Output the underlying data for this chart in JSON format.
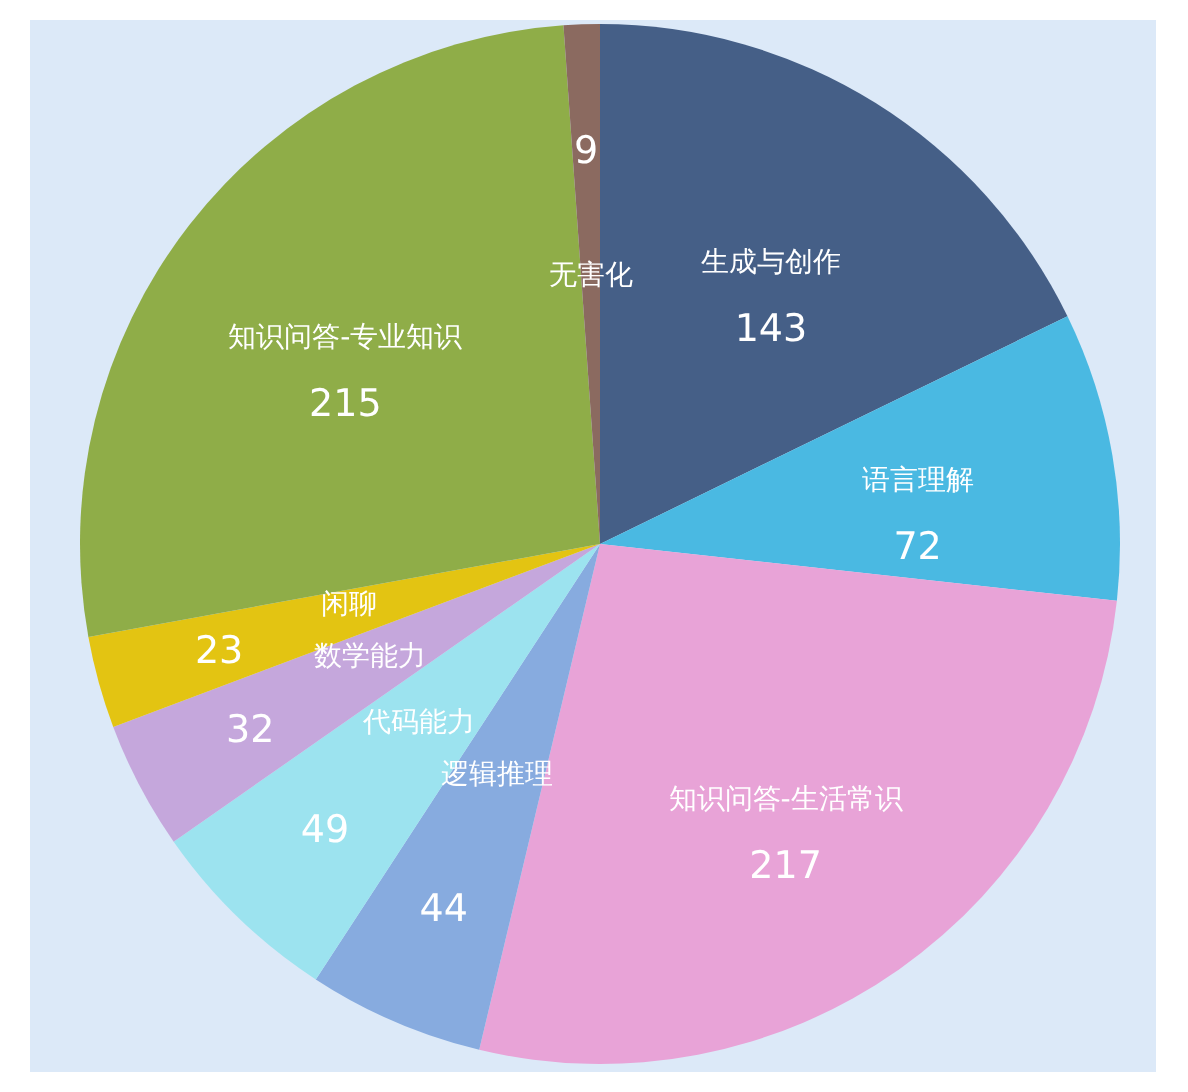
{
  "chart_data": {
    "type": "pie",
    "categories": [
      "生成与创作",
      "语言理解",
      "知识问答-生活常识",
      "逻辑推理",
      "代码能力",
      "数学能力",
      "闲聊",
      "知识问答-专业知识",
      "无害化"
    ],
    "values": [
      143,
      72,
      217,
      44,
      49,
      32,
      23,
      215,
      9
    ],
    "colors": [
      "#455f87",
      "#4ab9e2",
      "#e8a3d7",
      "#87abdf",
      "#9ce3ef",
      "#c5a7dc",
      "#e3c412",
      "#8fad48",
      "#8b6a60"
    ],
    "data_labels": true
  }
}
